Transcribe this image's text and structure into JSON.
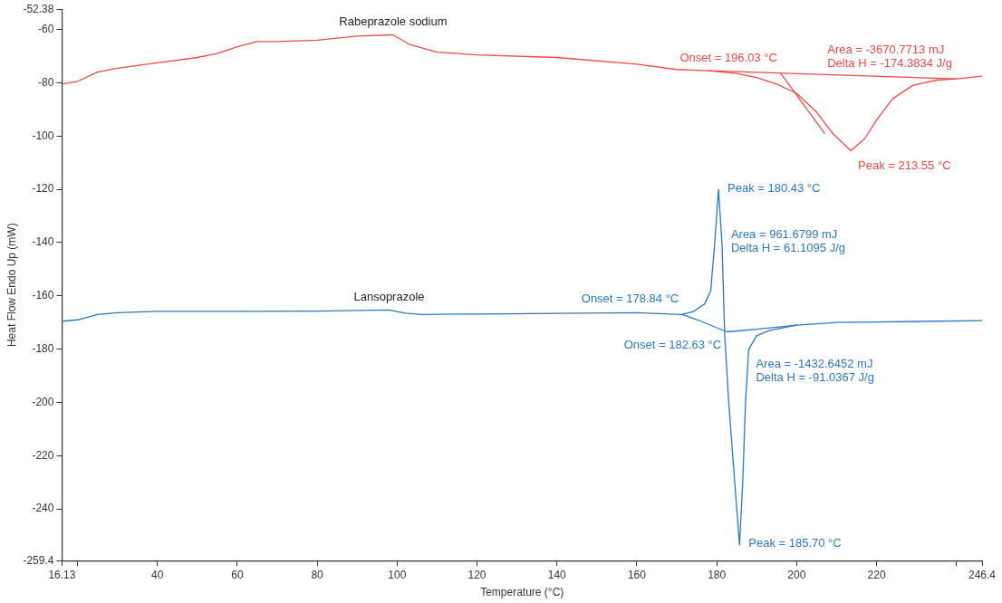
{
  "chart_data": {
    "type": "line",
    "xlabel": "Temperature (°C)",
    "ylabel": "Heat Flow Endo Up (mW)",
    "xlim": [
      16.13,
      246.4
    ],
    "ylim": [
      -259.4,
      -52.38
    ],
    "xticks": [
      16.13,
      {
        "value": 20,
        "label": null
      },
      40,
      60,
      80,
      100,
      120,
      140,
      160,
      180,
      200,
      220,
      {
        "value": 240,
        "label": null
      },
      246.4
    ],
    "yticks": [
      -259.4,
      -240,
      -220,
      -200,
      -180,
      -160,
      -140,
      -120,
      -100,
      -80,
      -60,
      -52.38
    ],
    "grid": false,
    "legend": false,
    "marker": "none",
    "line_style": "solid",
    "series": [
      {
        "name": "Rabeprazole sodium",
        "color": "#f04848",
        "x": [
          16.13,
          20,
          25,
          30,
          40,
          50,
          55,
          60,
          65,
          70,
          80,
          90,
          99,
          103,
          110,
          120,
          140,
          160,
          170,
          178,
          185,
          190,
          195,
          200,
          205,
          209,
          213.55,
          217,
          220,
          224,
          229,
          235,
          240,
          246.4
        ],
        "values": [
          -80.5,
          -79.5,
          -76,
          -74.5,
          -72.5,
          -70.5,
          -69,
          -66.5,
          -64.5,
          -64.5,
          -64,
          -62.5,
          -62,
          -65.5,
          -68.5,
          -69.5,
          -70.5,
          -73,
          -75,
          -75.5,
          -76.5,
          -78,
          -80.5,
          -84,
          -91,
          -99,
          -105.5,
          -101,
          -94,
          -86,
          -81,
          -79,
          -78.5,
          -77.5
        ]
      },
      {
        "type": "line",
        "color": "#f04848",
        "x": [
          178,
          239.8
        ],
        "values": [
          -75.5,
          -78.5
        ]
      },
      {
        "type": "line",
        "color": "#f04848",
        "x": [
          196.03,
          207
        ],
        "values": [
          -76.5,
          -99
        ]
      },
      {
        "name": "Lansoprazole",
        "color": "#2a78c4",
        "x": [
          16.13,
          20,
          25,
          30,
          40,
          60,
          80,
          98,
          102,
          106,
          120,
          140,
          160,
          171,
          174,
          177,
          178.5,
          179.5,
          180.43,
          181.3,
          182,
          183,
          184.5,
          185.7,
          186.5,
          187.2,
          188,
          190,
          193,
          200,
          210,
          220,
          246.4
        ],
        "values": [
          -169.5,
          -169,
          -167,
          -166.3,
          -165.8,
          -165.8,
          -165.7,
          -165.3,
          -166.5,
          -167,
          -166.8,
          -166.6,
          -166.3,
          -167,
          -166,
          -163,
          -158,
          -140,
          -120,
          -140,
          -175,
          -200,
          -230,
          -253.5,
          -230,
          -200,
          -180,
          -175,
          -173,
          -171,
          -170,
          -169.8,
          -169.3
        ]
      },
      {
        "type": "line",
        "color": "#2a78c4",
        "x": [
          171.4,
          176,
          182.5,
          190,
          200
        ],
        "values": [
          -167,
          -169.5,
          -173.5,
          -172.5,
          -171
        ]
      }
    ],
    "annotations": [
      {
        "text": "Onset = 196.03 °C",
        "x": 196.03,
        "y": -76.4
      },
      {
        "text": "Area = -3670.7713 mJ\nDelta H = -174.3834 J/g",
        "x": 239.8,
        "y": -78.5
      },
      {
        "text": "Peak = 213.55 °C",
        "x": 213.55,
        "y": -105.5
      },
      {
        "text": "Peak = 180.43 °C",
        "x": 180.43,
        "y": -120
      },
      {
        "text": "Area = 961.6799 mJ\nDelta H = 61.1095 J/g",
        "x": 181.3,
        "y": -140
      },
      {
        "text": "Onset = 178.84 °C",
        "x": 171.4,
        "y": -167
      },
      {
        "text": "Onset = 182.63 °C",
        "x": 182.5,
        "y": -173.5
      },
      {
        "text": "Area = -1432.6452 mJ\nDelta H = -91.0367 J/g",
        "x": 188,
        "y": -180
      },
      {
        "text": "Peak = 185.70 °C",
        "x": 185.7,
        "y": -253.5
      }
    ]
  }
}
